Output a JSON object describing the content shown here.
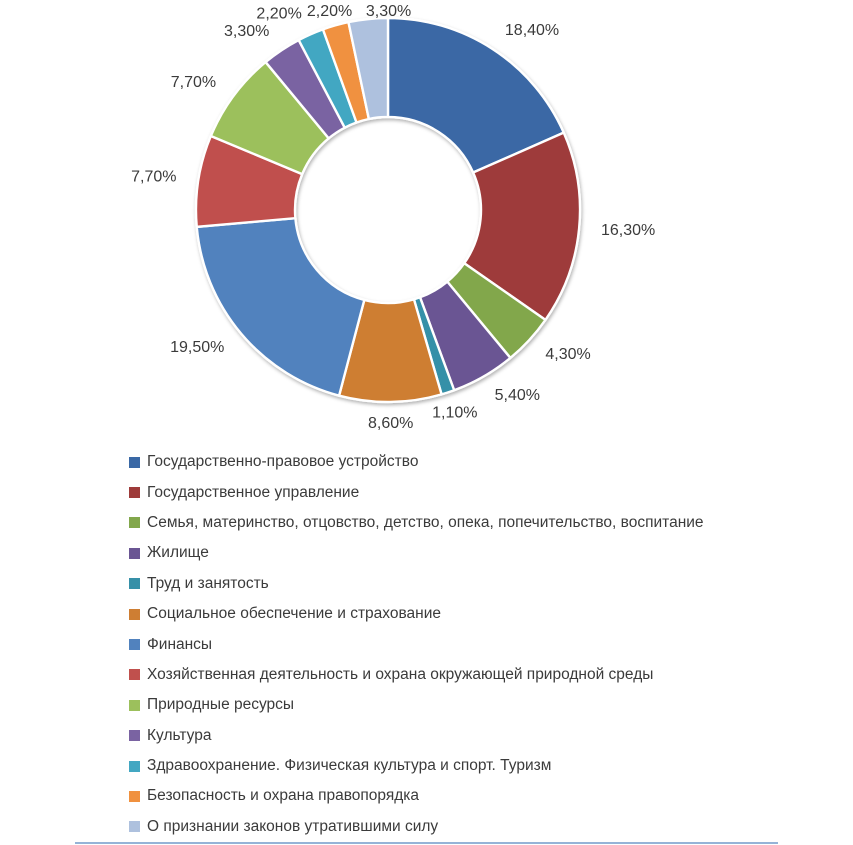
{
  "chart_data": {
    "type": "pie",
    "subtype": "donut",
    "title": "",
    "unit": "%",
    "grid": false,
    "legend_position": "bottom-left",
    "label_color": "#3b3b3b",
    "slice_border_color": "#ffffff",
    "slices": [
      {
        "label": "Государственно-правовое устройство",
        "value": 18.4,
        "display": "18,40%",
        "color": "#3a68a5"
      },
      {
        "label": "Государственное управление",
        "value": 16.3,
        "display": "16,30%",
        "color": "#9e3b3a"
      },
      {
        "label": "Семья, материнство, отцовство, детство, опека, попечительство, воспитание",
        "value": 4.3,
        "display": "4,30%",
        "color": "#82a74c"
      },
      {
        "label": "Жилище",
        "value": 5.4,
        "display": "5,40%",
        "color": "#6a5593"
      },
      {
        "label": "Труд и занятость",
        "value": 1.1,
        "display": "1,10%",
        "color": "#3690a8"
      },
      {
        "label": "Социальное обеспечение и страхование",
        "value": 8.6,
        "display": "8,60%",
        "color": "#ce7e33"
      },
      {
        "label": "Финансы",
        "value": 19.5,
        "display": "19,50%",
        "color": "#5182be"
      },
      {
        "label": "Хозяйственная деятельность и охрана окружающей природной среды",
        "value": 7.7,
        "display": "7,70%",
        "color": "#c0504d"
      },
      {
        "label": "Природные ресурсы",
        "value": 7.7,
        "display": "7,70%",
        "color": "#9cc05c"
      },
      {
        "label": "Культура",
        "value": 3.3,
        "display": "3,30%",
        "color": "#7a63a2"
      },
      {
        "label": "Здравоохранение. Физическая культура и спорт. Туризм",
        "value": 2.2,
        "display": "2,20%",
        "color": "#43a7c2"
      },
      {
        "label": "Безопасность и охрана правопорядка",
        "value": 2.2,
        "display": "2,20%",
        "color": "#f0913f"
      },
      {
        "label": "О признании законов утратившими силу",
        "value": 3.3,
        "display": "3,30%",
        "color": "#aec1de"
      }
    ]
  }
}
